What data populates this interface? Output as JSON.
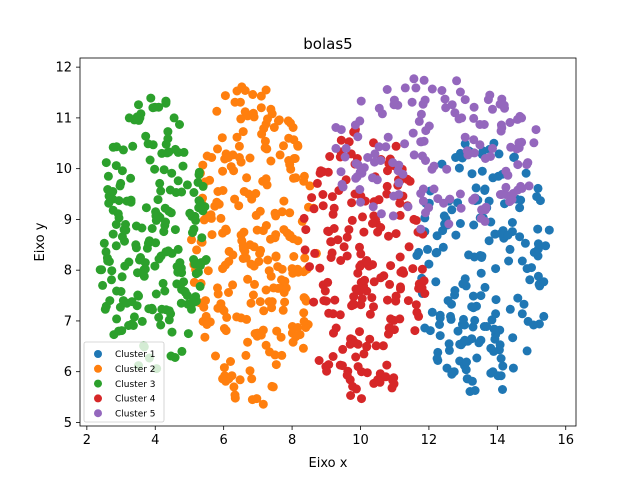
{
  "chart_data": {
    "type": "scatter",
    "title": "bolas5",
    "xlabel": "Eixo x",
    "ylabel": "Eixo y",
    "xlim": [
      1.8,
      16.3
    ],
    "ylim": [
      4.93,
      12.18
    ],
    "xticks": [
      2,
      4,
      6,
      8,
      10,
      12,
      14,
      16
    ],
    "yticks": [
      5,
      6,
      7,
      8,
      9,
      10,
      11,
      12
    ],
    "legend_position": "lower-left",
    "series": [
      {
        "name": "Cluster 1",
        "color": "#1f77b4",
        "region": {
          "cx": 13.6,
          "cy": 8.1,
          "rx": 2.0,
          "ry": 2.55
        },
        "count": 190,
        "points": []
      },
      {
        "name": "Cluster 2",
        "color": "#ff7f0e",
        "region": {
          "cx": 6.9,
          "cy": 8.55,
          "rx": 1.85,
          "ry": 3.3
        },
        "count": 250,
        "points": []
      },
      {
        "name": "Cluster 3",
        "color": "#2ca02c",
        "region": {
          "cx": 3.9,
          "cy": 8.7,
          "rx": 1.65,
          "ry": 2.75
        },
        "count": 210,
        "points": []
      },
      {
        "name": "Cluster 4",
        "color": "#d62728",
        "region": {
          "cx": 10.1,
          "cy": 8.1,
          "rx": 1.9,
          "ry": 2.7
        },
        "count": 200,
        "points": []
      },
      {
        "name": "Cluster 5",
        "color": "#9467bd",
        "region": {
          "cx": 12.2,
          "cy": 10.3,
          "rx": 3.1,
          "ry": 1.55
        },
        "count": 150,
        "points": []
      }
    ]
  }
}
